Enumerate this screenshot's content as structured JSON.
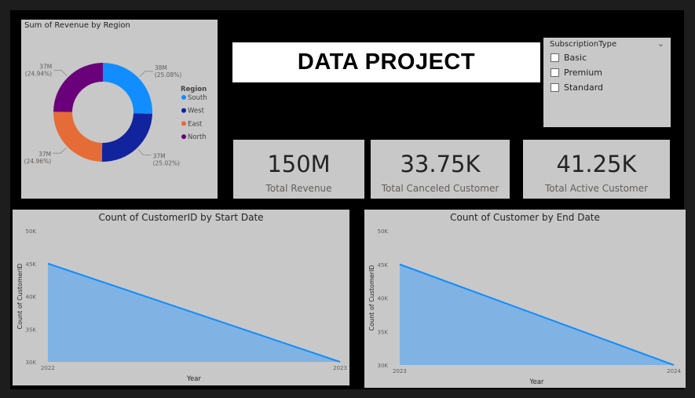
{
  "donut": {
    "title": "Sum of Revenue by Region",
    "legend_title": "Region",
    "slices": [
      {
        "region": "South",
        "value": 38,
        "value_label": "38M",
        "pct_label": "(25.08%)",
        "color": "#118dff"
      },
      {
        "region": "West",
        "value": 37,
        "value_label": "37M",
        "pct_label": "(25.02%)",
        "color": "#12239e"
      },
      {
        "region": "East",
        "value": 37,
        "value_label": "37M",
        "pct_label": "(24.96%)",
        "color": "#e66c37"
      },
      {
        "region": "North",
        "value": 37,
        "value_label": "37M",
        "pct_label": "(24.94%)",
        "color": "#6b007b"
      }
    ]
  },
  "banner": {
    "title": "DATA PROJECT"
  },
  "slicer": {
    "title": "SubscriptionType",
    "options": [
      "Basic",
      "Premium",
      "Standard"
    ]
  },
  "kpis": [
    {
      "value": "150M",
      "label": "Total Revenue"
    },
    {
      "value": "33.75K",
      "label": "Total Canceled Customer"
    },
    {
      "value": "41.25K",
      "label": "Total Active Customer"
    }
  ],
  "chart_data": [
    {
      "type": "area",
      "title": "Count of CustomerID by Start Date",
      "xlabel": "Year",
      "ylabel": "Count of CustomerID",
      "x": [
        "2022",
        "2023"
      ],
      "y": [
        45000,
        30000
      ],
      "yticks": [
        "30K",
        "35K",
        "40K",
        "45K",
        "50K"
      ],
      "ylim": [
        30000,
        50000
      ],
      "color": "#118dff",
      "fill": "#80b3e3"
    },
    {
      "type": "area",
      "title": "Count of Customer by End Date",
      "xlabel": "Year",
      "ylabel": "Count of CustomerID",
      "x": [
        "2023",
        "2024"
      ],
      "y": [
        45000,
        30000
      ],
      "yticks": [
        "30K",
        "35K",
        "40K",
        "45K",
        "50K"
      ],
      "ylim": [
        30000,
        50000
      ],
      "color": "#118dff",
      "fill": "#80b3e3"
    }
  ]
}
